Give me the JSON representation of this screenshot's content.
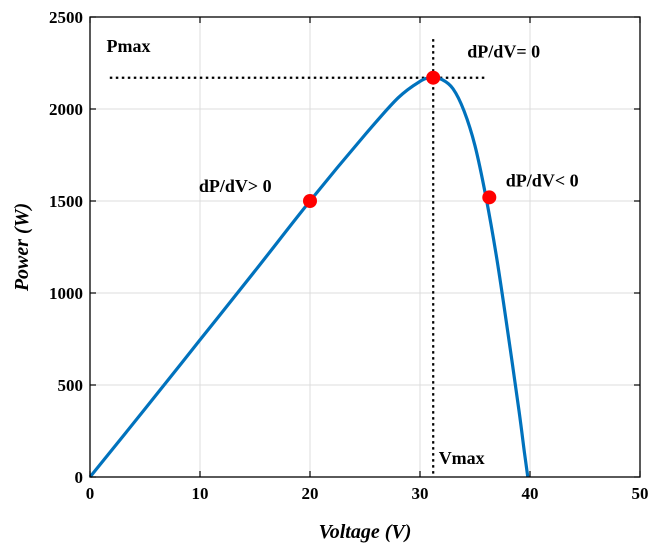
{
  "chart_data": {
    "type": "line",
    "xlabel": "Voltage (V)",
    "ylabel": "Power (W)",
    "xlim": [
      0,
      50
    ],
    "ylim": [
      0,
      2500
    ],
    "xticks": [
      0,
      10,
      20,
      30,
      40,
      50
    ],
    "yticks": [
      0,
      500,
      1000,
      1500,
      2000,
      2500
    ],
    "grid": true,
    "series": [
      {
        "color": "#0072BD",
        "x": [
          0,
          5,
          10,
          15,
          20,
          25,
          28,
          30,
          31,
          32,
          33,
          34,
          35,
          36,
          37,
          38,
          39,
          39.5,
          39.8
        ],
        "y": [
          0,
          370,
          745,
          1120,
          1500,
          1860,
          2060,
          2150,
          2170,
          2160,
          2110,
          1990,
          1800,
          1520,
          1180,
          780,
          360,
          130,
          0
        ]
      }
    ],
    "markers": [
      {
        "x": 20,
        "y": 1500,
        "color": "#ff0000"
      },
      {
        "x": 31.2,
        "y": 2170,
        "color": "#ff0000"
      },
      {
        "x": 36.3,
        "y": 1520,
        "color": "#ff0000"
      }
    ],
    "guides": {
      "pmax_y": 2170,
      "vmax_x": 31.2
    },
    "annotations": [
      {
        "id": "pmax",
        "text": "Pmax",
        "x": 1.5,
        "y": 2310
      },
      {
        "id": "slope-zero",
        "text": "dP/dV= 0",
        "x": 34.3,
        "y": 2280
      },
      {
        "id": "slope-positive",
        "text": "dP/dV> 0",
        "x": 9.9,
        "y": 1550
      },
      {
        "id": "slope-negative",
        "text": "dP/dV< 0",
        "x": 37.8,
        "y": 1580
      },
      {
        "id": "vmax",
        "text": "Vmax",
        "x": 31.7,
        "y": 70
      }
    ]
  }
}
